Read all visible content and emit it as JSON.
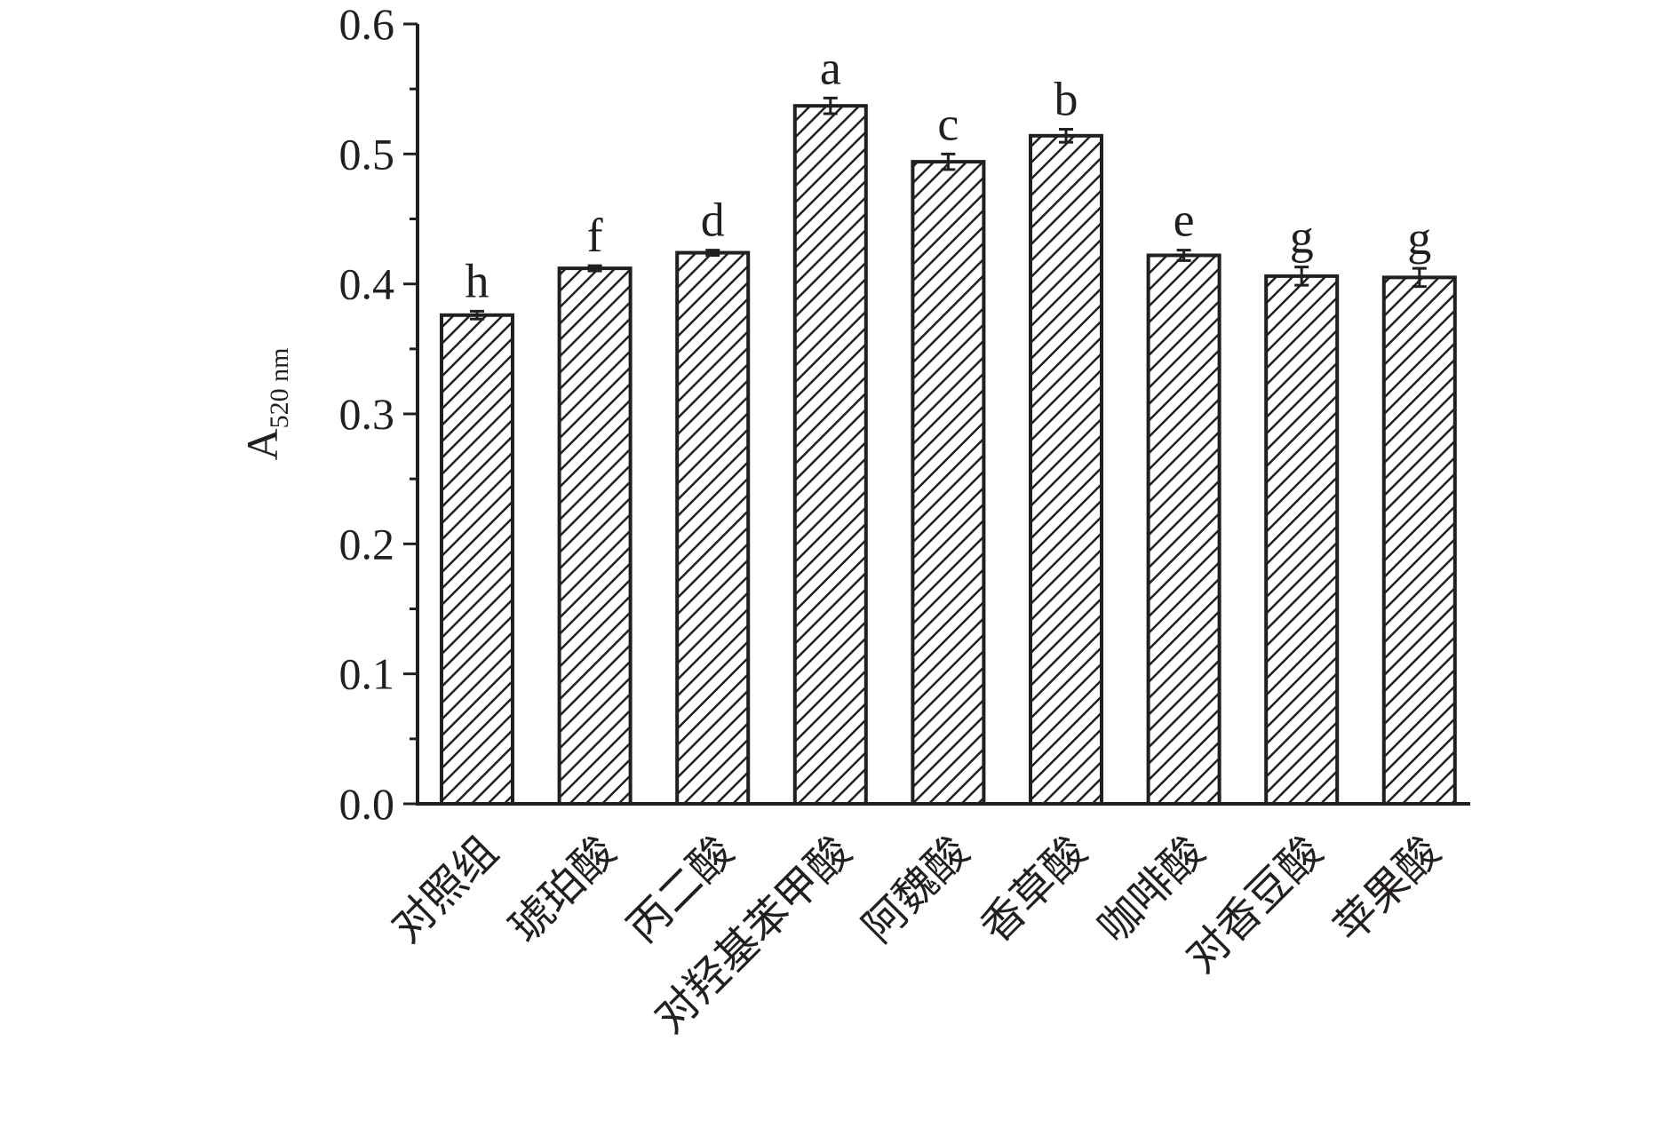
{
  "chart_data": {
    "type": "bar",
    "ylabel_main": "A",
    "ylabel_sub": "520 nm",
    "ylim": [
      0,
      0.6
    ],
    "yticks": [
      "0.0",
      "0.1",
      "0.2",
      "0.3",
      "0.4",
      "0.5",
      "0.6"
    ],
    "grid": false,
    "bar_fill": "diagonal hatch",
    "colors": {
      "ink": "#231f20",
      "background": "#ffffff"
    },
    "categories": [
      "对照组",
      "琥珀酸",
      "丙二酸",
      "对羟基苯甲酸",
      "阿魏酸",
      "香草酸",
      "咖啡酸",
      "对香豆酸",
      "苹果酸"
    ],
    "values": [
      0.376,
      0.412,
      0.424,
      0.537,
      0.494,
      0.514,
      0.422,
      0.406,
      0.405
    ],
    "errors": [
      0.003,
      0.002,
      0.002,
      0.006,
      0.006,
      0.005,
      0.004,
      0.007,
      0.007
    ],
    "significance": [
      "h",
      "f",
      "d",
      "a",
      "c",
      "b",
      "e",
      "g",
      "g"
    ]
  }
}
